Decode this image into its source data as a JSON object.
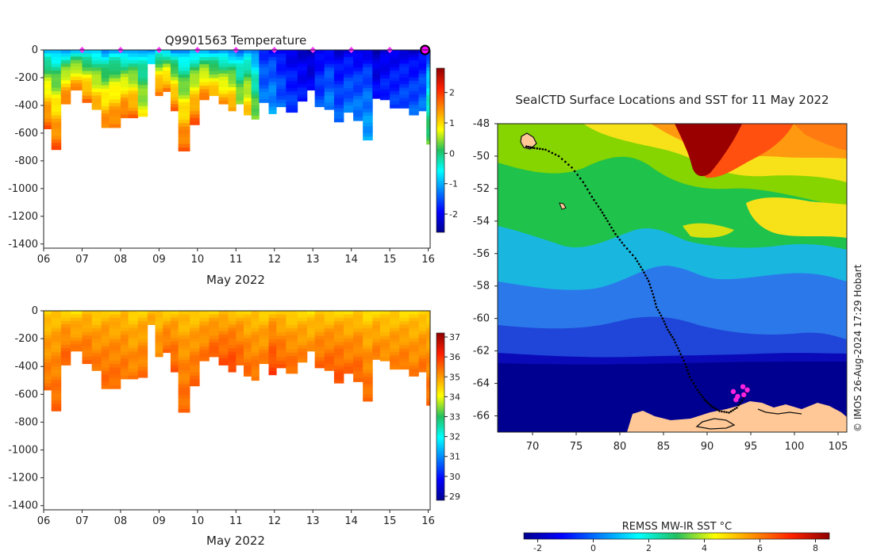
{
  "chart_data": [
    {
      "id": "temperature",
      "type": "heatmap",
      "title": "Q9901563  Temperature",
      "xlabel": "May 2022",
      "ylabel": "",
      "x_range": [
        6,
        16.05
      ],
      "ylim": [
        -1430,
        0
      ],
      "x_ticks": [
        "06",
        "07",
        "08",
        "09",
        "10",
        "11",
        "12",
        "13",
        "14",
        "15",
        "16"
      ],
      "y_ticks": [
        0,
        -200,
        -400,
        -600,
        -800,
        -1000,
        -1200,
        -1400
      ],
      "colorbar": {
        "min": -2.6,
        "max": 2.8,
        "ticks": [
          2,
          1,
          0,
          -1,
          -2
        ]
      },
      "surface_markers_day": [
        7,
        8,
        9,
        10,
        11,
        12,
        13,
        14,
        15,
        16
      ],
      "profiles": [
        {
          "day": 6.0,
          "depth": 570,
          "surf": -1.3,
          "deep": 1.8
        },
        {
          "day": 6.2,
          "depth": 720,
          "surf": -1.4,
          "deep": 1.8
        },
        {
          "day": 6.45,
          "depth": 390,
          "surf": -1.5,
          "deep": 1.7
        },
        {
          "day": 6.7,
          "depth": 290,
          "surf": -1.2,
          "deep": 1.5
        },
        {
          "day": 7.0,
          "depth": 380,
          "surf": -1.4,
          "deep": 1.7
        },
        {
          "day": 7.25,
          "depth": 430,
          "surf": -1.3,
          "deep": 1.4
        },
        {
          "day": 7.5,
          "depth": 560,
          "surf": -1.5,
          "deep": 1.6
        },
        {
          "day": 7.7,
          "depth": 560,
          "surf": -1.3,
          "deep": 1.7
        },
        {
          "day": 8.0,
          "depth": 490,
          "surf": -1.6,
          "deep": 1.8
        },
        {
          "day": 8.2,
          "depth": 490,
          "surf": -1.5,
          "deep": 1.7
        },
        {
          "day": 8.45,
          "depth": 480,
          "surf": -1.2,
          "deep": 0.8
        },
        {
          "day": 8.7,
          "depth": 100,
          "surf": -1.4,
          "deep": -0.5
        },
        {
          "day": 8.9,
          "depth": 330,
          "surf": -1.3,
          "deep": 1.7
        },
        {
          "day": 9.1,
          "depth": 300,
          "surf": -1.2,
          "deep": 1.6
        },
        {
          "day": 9.3,
          "depth": 440,
          "surf": -1.5,
          "deep": 1.7
        },
        {
          "day": 9.5,
          "depth": 730,
          "surf": -1.6,
          "deep": 1.8
        },
        {
          "day": 9.8,
          "depth": 540,
          "surf": -1.4,
          "deep": 1.8
        },
        {
          "day": 10.05,
          "depth": 360,
          "surf": -1.3,
          "deep": 1.6
        },
        {
          "day": 10.3,
          "depth": 330,
          "surf": -1.5,
          "deep": 1.3
        },
        {
          "day": 10.55,
          "depth": 390,
          "surf": -1.6,
          "deep": 1.4
        },
        {
          "day": 10.8,
          "depth": 440,
          "surf": -1.7,
          "deep": 1.5
        },
        {
          "day": 11.0,
          "depth": 390,
          "surf": -1.6,
          "deep": 0.6
        },
        {
          "day": 11.2,
          "depth": 470,
          "surf": -1.5,
          "deep": 1.2
        },
        {
          "day": 11.4,
          "depth": 500,
          "surf": -1.7,
          "deep": 0.5
        },
        {
          "day": 11.6,
          "depth": 380,
          "surf": -1.8,
          "deep": -1.3
        },
        {
          "day": 11.85,
          "depth": 460,
          "surf": -1.9,
          "deep": -1.1
        },
        {
          "day": 12.05,
          "depth": 410,
          "surf": -2.1,
          "deep": -1.4
        },
        {
          "day": 12.3,
          "depth": 450,
          "surf": -2.2,
          "deep": -1.6
        },
        {
          "day": 12.6,
          "depth": 370,
          "surf": -2.3,
          "deep": -1.8
        },
        {
          "day": 12.85,
          "depth": 290,
          "surf": -2.4,
          "deep": -2.0
        },
        {
          "day": 13.05,
          "depth": 410,
          "surf": -2.2,
          "deep": -1.5
        },
        {
          "day": 13.3,
          "depth": 430,
          "surf": -2.1,
          "deep": -1.2
        },
        {
          "day": 13.55,
          "depth": 520,
          "surf": -2.3,
          "deep": -1.4
        },
        {
          "day": 13.8,
          "depth": 450,
          "surf": -2.2,
          "deep": -1.3
        },
        {
          "day": 14.05,
          "depth": 510,
          "surf": -2.3,
          "deep": -1.2
        },
        {
          "day": 14.3,
          "depth": 650,
          "surf": -2.2,
          "deep": -1.0
        },
        {
          "day": 14.55,
          "depth": 350,
          "surf": -2.4,
          "deep": -1.9
        },
        {
          "day": 14.75,
          "depth": 360,
          "surf": -2.3,
          "deep": -1.7
        },
        {
          "day": 15.0,
          "depth": 420,
          "surf": -2.2,
          "deep": -1.6
        },
        {
          "day": 15.25,
          "depth": 420,
          "surf": -2.2,
          "deep": -1.5
        },
        {
          "day": 15.5,
          "depth": 470,
          "surf": -2.3,
          "deep": -1.4
        },
        {
          "day": 15.75,
          "depth": 440,
          "surf": -2.2,
          "deep": -1.3
        },
        {
          "day": 15.95,
          "depth": 680,
          "surf": -2.1,
          "deep": 0.3
        }
      ]
    },
    {
      "id": "salinity",
      "type": "heatmap",
      "title": "",
      "xlabel": "May 2022",
      "x_range": [
        6,
        16.05
      ],
      "ylim": [
        -1430,
        0
      ],
      "x_ticks": [
        "06",
        "07",
        "08",
        "09",
        "10",
        "11",
        "12",
        "13",
        "14",
        "15",
        "16"
      ],
      "y_ticks": [
        0,
        -200,
        -400,
        -600,
        -800,
        -1000,
        -1200,
        -1400
      ],
      "colorbar": {
        "min": 28.8,
        "max": 37.2,
        "ticks": [
          37,
          36,
          35,
          34,
          33,
          32,
          31,
          30,
          29
        ]
      },
      "profiles": [
        {
          "day": 6.0,
          "depth": 570,
          "surf": 34.3,
          "deep": 35.4
        },
        {
          "day": 6.2,
          "depth": 720,
          "surf": 34.4,
          "deep": 35.5
        },
        {
          "day": 6.45,
          "depth": 390,
          "surf": 34.3,
          "deep": 35.6
        },
        {
          "day": 6.7,
          "depth": 290,
          "surf": 34.2,
          "deep": 35.3
        },
        {
          "day": 7.0,
          "depth": 380,
          "surf": 34.4,
          "deep": 35.5
        },
        {
          "day": 7.25,
          "depth": 430,
          "surf": 34.3,
          "deep": 35.4
        },
        {
          "day": 7.5,
          "depth": 560,
          "surf": 34.5,
          "deep": 35.5
        },
        {
          "day": 7.7,
          "depth": 560,
          "surf": 34.4,
          "deep": 35.5
        },
        {
          "day": 8.0,
          "depth": 490,
          "surf": 34.5,
          "deep": 35.4
        },
        {
          "day": 8.2,
          "depth": 490,
          "surf": 34.3,
          "deep": 35.3
        },
        {
          "day": 8.45,
          "depth": 480,
          "surf": 34.4,
          "deep": 35.4
        },
        {
          "day": 8.7,
          "depth": 100,
          "surf": 34.5,
          "deep": 35.0
        },
        {
          "day": 8.9,
          "depth": 330,
          "surf": 34.4,
          "deep": 35.2
        },
        {
          "day": 9.1,
          "depth": 300,
          "surf": 34.3,
          "deep": 35.5
        },
        {
          "day": 9.3,
          "depth": 440,
          "surf": 34.4,
          "deep": 35.6
        },
        {
          "day": 9.5,
          "depth": 730,
          "surf": 34.4,
          "deep": 35.5
        },
        {
          "day": 9.8,
          "depth": 540,
          "surf": 34.3,
          "deep": 35.5
        },
        {
          "day": 10.05,
          "depth": 360,
          "surf": 34.4,
          "deep": 35.4
        },
        {
          "day": 10.3,
          "depth": 330,
          "surf": 34.3,
          "deep": 35.6
        },
        {
          "day": 10.55,
          "depth": 390,
          "surf": 34.4,
          "deep": 35.7
        },
        {
          "day": 10.8,
          "depth": 440,
          "surf": 34.3,
          "deep": 35.9
        },
        {
          "day": 11.0,
          "depth": 390,
          "surf": 34.4,
          "deep": 35.6
        },
        {
          "day": 11.2,
          "depth": 470,
          "surf": 34.3,
          "deep": 35.5
        },
        {
          "day": 11.4,
          "depth": 500,
          "surf": 34.4,
          "deep": 35.4
        },
        {
          "day": 11.6,
          "depth": 380,
          "surf": 34.3,
          "deep": 35.3
        },
        {
          "day": 11.85,
          "depth": 460,
          "surf": 34.4,
          "deep": 35.9
        },
        {
          "day": 12.05,
          "depth": 410,
          "surf": 34.3,
          "deep": 35.6
        },
        {
          "day": 12.3,
          "depth": 450,
          "surf": 34.2,
          "deep": 35.5
        },
        {
          "day": 12.6,
          "depth": 370,
          "surf": 34.3,
          "deep": 35.3
        },
        {
          "day": 12.85,
          "depth": 290,
          "surf": 34.2,
          "deep": 35.1
        },
        {
          "day": 13.05,
          "depth": 410,
          "surf": 34.3,
          "deep": 35.5
        },
        {
          "day": 13.3,
          "depth": 430,
          "surf": 34.2,
          "deep": 35.6
        },
        {
          "day": 13.55,
          "depth": 520,
          "surf": 34.3,
          "deep": 35.7
        },
        {
          "day": 13.8,
          "depth": 450,
          "surf": 34.2,
          "deep": 35.5
        },
        {
          "day": 14.05,
          "depth": 510,
          "surf": 34.3,
          "deep": 35.6
        },
        {
          "day": 14.3,
          "depth": 650,
          "surf": 34.2,
          "deep": 35.5
        },
        {
          "day": 14.55,
          "depth": 350,
          "surf": 34.3,
          "deep": 35.3
        },
        {
          "day": 14.75,
          "depth": 360,
          "surf": 34.2,
          "deep": 35.2
        },
        {
          "day": 15.0,
          "depth": 420,
          "surf": 34.3,
          "deep": 35.3
        },
        {
          "day": 15.25,
          "depth": 420,
          "surf": 34.2,
          "deep": 35.4
        },
        {
          "day": 15.5,
          "depth": 470,
          "surf": 34.3,
          "deep": 35.3
        },
        {
          "day": 15.75,
          "depth": 440,
          "surf": 34.2,
          "deep": 35.4
        },
        {
          "day": 15.95,
          "depth": 680,
          "surf": 34.3,
          "deep": 35.5
        }
      ]
    },
    {
      "id": "sst-map",
      "type": "map",
      "title": "SealCTD Surface Locations and SST for 11 May 2022",
      "x_range": [
        66,
        106
      ],
      "y_range": [
        -67,
        -48
      ],
      "x_ticks": [
        70,
        75,
        80,
        85,
        90,
        95,
        100,
        105
      ],
      "y_ticks": [
        -48,
        -50,
        -52,
        -54,
        -56,
        -58,
        -60,
        -62,
        -64,
        -66
      ],
      "colorbar": {
        "label": "REMSS MW-IR SST °C",
        "min": -2.5,
        "max": 8.5,
        "ticks": [
          -2,
          0,
          2,
          4,
          6,
          8
        ]
      },
      "track_lonlat": [
        [
          69.3,
          -49.4
        ],
        [
          70.2,
          -49.5
        ],
        [
          71.5,
          -49.6
        ],
        [
          73.0,
          -50.0
        ],
        [
          74.5,
          -50.7
        ],
        [
          75.8,
          -51.6
        ],
        [
          76.8,
          -52.5
        ],
        [
          77.8,
          -53.3
        ],
        [
          78.6,
          -54.0
        ],
        [
          79.5,
          -54.8
        ],
        [
          80.5,
          -55.5
        ],
        [
          81.8,
          -56.3
        ],
        [
          82.6,
          -57.0
        ],
        [
          83.3,
          -57.7
        ],
        [
          83.8,
          -58.5
        ],
        [
          84.2,
          -59.3
        ],
        [
          84.9,
          -60.0
        ],
        [
          85.5,
          -60.7
        ],
        [
          86.2,
          -61.3
        ],
        [
          86.8,
          -62.0
        ],
        [
          87.5,
          -62.8
        ],
        [
          88.0,
          -63.6
        ],
        [
          88.9,
          -64.4
        ],
        [
          89.7,
          -65.0
        ],
        [
          90.5,
          -65.4
        ],
        [
          91.4,
          -65.7
        ],
        [
          92.5,
          -65.8
        ],
        [
          93.4,
          -65.5
        ],
        [
          94.2,
          -64.9
        ],
        [
          94.6,
          -64.3
        ]
      ],
      "recent_positions_lonlat": [
        [
          93.0,
          -64.5
        ],
        [
          93.5,
          -64.8
        ],
        [
          94.2,
          -64.7
        ],
        [
          94.6,
          -64.4
        ],
        [
          94.1,
          -64.2
        ],
        [
          93.3,
          -65.0
        ]
      ],
      "credit": "© IMOS 26-Aug-2024 17:29 Hobart"
    }
  ]
}
